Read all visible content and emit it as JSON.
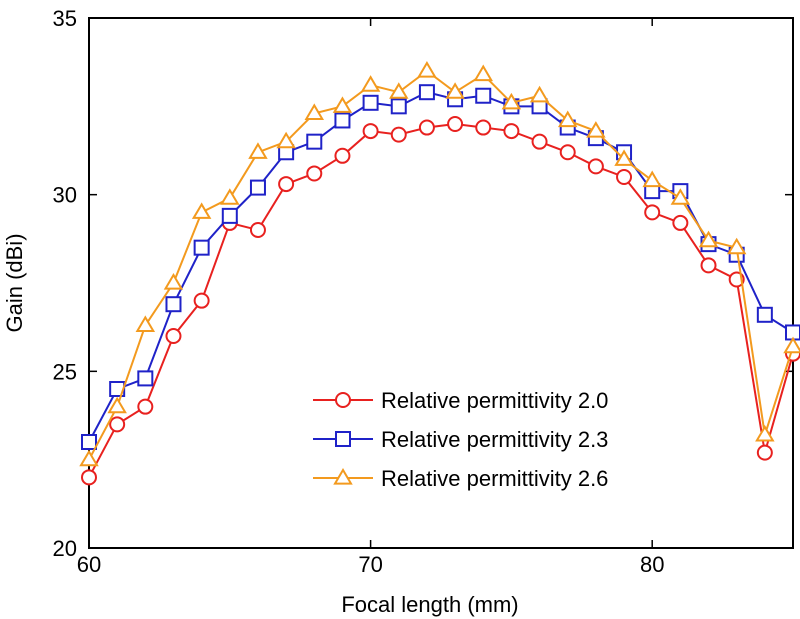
{
  "chart_data": {
    "type": "line",
    "xlabel": "Focal length (mm)",
    "ylabel": "Gain (dBi)",
    "xlim": [
      60,
      85
    ],
    "ylim": [
      20,
      35
    ],
    "xticks": [
      60,
      70,
      80
    ],
    "yticks": [
      20,
      25,
      30,
      35
    ],
    "grid": false,
    "legend_position": "bottom-right",
    "x": [
      60,
      61,
      62,
      63,
      64,
      65,
      66,
      67,
      68,
      69,
      70,
      71,
      72,
      73,
      74,
      75,
      76,
      77,
      78,
      79,
      80,
      81,
      82,
      83,
      84,
      85
    ],
    "series": [
      {
        "name": "Relative permittivity 2.0",
        "color": "#e8211f",
        "marker": "circle",
        "values": [
          22.0,
          23.5,
          24.0,
          26.0,
          27.0,
          29.2,
          29.0,
          30.3,
          30.6,
          31.1,
          31.8,
          31.7,
          31.9,
          32.0,
          31.9,
          31.8,
          31.5,
          31.2,
          30.8,
          30.5,
          29.5,
          29.2,
          28.0,
          27.6,
          22.7,
          25.5
        ]
      },
      {
        "name": "Relative permittivity 2.3",
        "color": "#1f22c8",
        "marker": "square",
        "values": [
          23.0,
          24.5,
          24.8,
          26.9,
          28.5,
          29.4,
          30.2,
          31.2,
          31.5,
          32.1,
          32.6,
          32.5,
          32.9,
          32.7,
          32.8,
          32.5,
          32.5,
          31.9,
          31.6,
          31.2,
          30.1,
          30.1,
          28.6,
          28.3,
          26.6,
          26.1
        ]
      },
      {
        "name": "Relative permittivity 2.6",
        "color": "#f39a1e",
        "marker": "triangle",
        "values": [
          22.5,
          24.0,
          26.3,
          27.5,
          29.5,
          29.9,
          31.2,
          31.5,
          32.3,
          32.5,
          33.1,
          32.9,
          33.5,
          32.9,
          33.4,
          32.6,
          32.8,
          32.1,
          31.8,
          31.0,
          30.4,
          29.9,
          28.7,
          28.5,
          23.2,
          25.7
        ]
      }
    ]
  }
}
